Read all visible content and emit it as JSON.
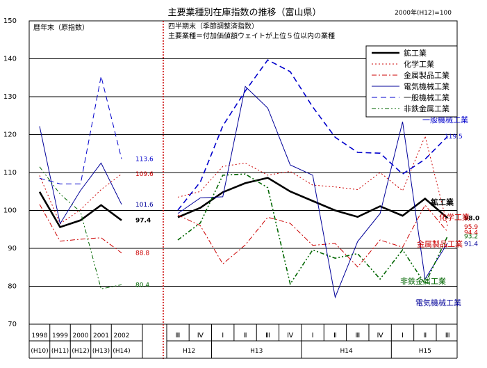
{
  "chart_data": {
    "type": "line",
    "title": "主要業種別在庫指数の推移（富山県）",
    "base_note": "2000年(H12)=100",
    "ylim": [
      70,
      150
    ],
    "yticks": [
      70,
      80,
      90,
      100,
      110,
      120,
      130,
      140,
      150
    ],
    "grid": true,
    "legend_position": "top-right",
    "left_panel": {
      "note": "暦年末（原指数）",
      "categories": [
        "1998",
        "1999",
        "2000",
        "2001",
        "2002"
      ],
      "categories_sub": [
        "(H10)",
        "(H11)",
        "(H12)",
        "(H13)",
        "(H14)"
      ]
    },
    "right_panel": {
      "note_line1": "四半期末（季節調整済指数）",
      "note_line2": "主要業種＝付加価値額ウェイトが上位５位以内の業種",
      "quarters": [
        "Ⅲ",
        "Ⅳ",
        "Ⅰ",
        "Ⅱ",
        "Ⅲ",
        "Ⅳ",
        "Ⅰ",
        "Ⅱ",
        "Ⅲ",
        "Ⅳ",
        "Ⅰ",
        "Ⅱ",
        "Ⅲ"
      ],
      "years": [
        {
          "label": "H12"
        },
        {
          "label": "H13"
        },
        {
          "label": "H14"
        },
        {
          "label": "H15"
        }
      ]
    },
    "series": [
      {
        "name": "鉱工業",
        "color": "#000000",
        "annual": [
          104.9,
          95.6,
          97.4,
          101.4,
          97.4
        ],
        "quarterly": [
          98.2,
          100.7,
          104.8,
          107.2,
          108.6,
          105.0,
          102.5,
          100.0,
          98.3,
          101.1,
          98.6,
          103.1,
          98.0
        ],
        "annual_label": "97.4",
        "quarterly_label": "98.0",
        "name_label": "鉱工業"
      },
      {
        "name": "化学工業",
        "color": "#cc0000",
        "annual": [
          109.2,
          96.5,
          100.2,
          105.5,
          109.6
        ],
        "quarterly": [
          103.5,
          105.0,
          111.6,
          112.5,
          109.3,
          110.3,
          106.7,
          106.2,
          105.5,
          110.0,
          105.2,
          119.6,
          95.9
        ],
        "annual_label": "109.6",
        "quarterly_label": "95.9",
        "name_label": "化学工業"
      },
      {
        "name": "金属製品工業",
        "color": "#cc0000",
        "annual": [
          101.6,
          91.9,
          92.4,
          92.8,
          88.8
        ],
        "quarterly": [
          98.8,
          96.0,
          85.9,
          90.9,
          98.2,
          96.6,
          90.8,
          91.3,
          85.1,
          92.2,
          90.3,
          101.4,
          94.4
        ],
        "annual_label": "88.8",
        "quarterly_label": "94.4",
        "name_label": "金属製品工業"
      },
      {
        "name": "電気機械工業",
        "color": "#000099",
        "annual": [
          122.2,
          96.5,
          105.3,
          112.5,
          101.6
        ],
        "quarterly": [
          99.2,
          103.3,
          103.6,
          132.7,
          127.0,
          112.0,
          109.3,
          77.1,
          91.8,
          99.2,
          123.4,
          81.9,
          91.4
        ],
        "annual_label": "101.6",
        "quarterly_label": "91.4",
        "name_label": "電気機械工業"
      },
      {
        "name": "一般機械工業",
        "color": "#0000cc",
        "annual": [
          108.5,
          107.0,
          107.0,
          135.4,
          113.6
        ],
        "quarterly": [
          100.1,
          107.5,
          122.3,
          131.5,
          139.7,
          136.6,
          127.3,
          119.3,
          115.3,
          115.1,
          109.6,
          113.5,
          119.5
        ],
        "annual_label": "113.6",
        "quarterly_label": "119.5",
        "name_label": "一般機械工業"
      },
      {
        "name": "非鉄金属工業",
        "color": "#006600",
        "annual": [
          111.5,
          104.3,
          99.6,
          79.3,
          80.4
        ],
        "quarterly": [
          92.2,
          96.7,
          109.3,
          109.6,
          106.0,
          80.6,
          89.6,
          87.4,
          88.6,
          81.9,
          89.6,
          80.6,
          93.2
        ],
        "annual_label": "80.4",
        "quarterly_label": "93.2",
        "name_label": "非鉄金属工業"
      }
    ]
  }
}
